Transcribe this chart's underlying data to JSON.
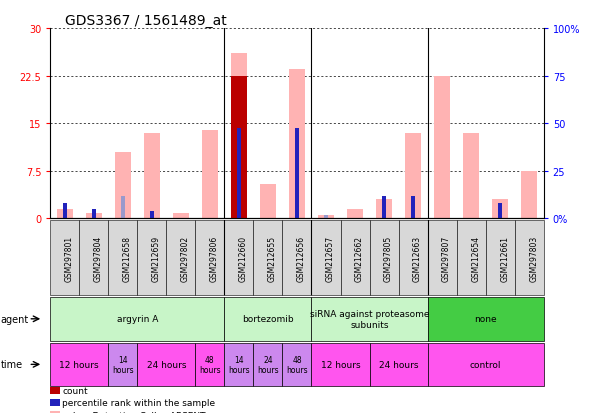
{
  "title": "GDS3367 / 1561489_at",
  "samples": [
    "GSM297801",
    "GSM297804",
    "GSM212658",
    "GSM212659",
    "GSM297802",
    "GSM297806",
    "GSM212660",
    "GSM212655",
    "GSM212656",
    "GSM212657",
    "GSM212662",
    "GSM297805",
    "GSM212663",
    "GSM297807",
    "GSM212654",
    "GSM212661",
    "GSM297803"
  ],
  "pink_bars": [
    1.5,
    0.8,
    10.5,
    13.5,
    0.8,
    14.0,
    26.0,
    5.5,
    23.5,
    0.5,
    1.5,
    3.0,
    13.5,
    22.5,
    13.5,
    3.0,
    7.5
  ],
  "red_bars": [
    0,
    0,
    0,
    0,
    0,
    0,
    22.5,
    0,
    0,
    0,
    0,
    0,
    0,
    0,
    0,
    0,
    0
  ],
  "blue_bars": [
    2.5,
    1.5,
    0,
    1.2,
    0,
    0,
    14.2,
    0,
    14.2,
    0,
    0,
    3.5,
    3.5,
    0,
    0,
    2.5,
    0
  ],
  "lavender_bars": [
    0,
    0,
    3.5,
    0,
    0,
    0,
    0,
    0,
    0,
    0.5,
    0,
    0,
    0,
    0,
    0,
    0,
    0
  ],
  "ylim_left": [
    0,
    30
  ],
  "ylim_right": [
    0,
    100
  ],
  "yticks_left": [
    0,
    7.5,
    15,
    22.5,
    30
  ],
  "yticks_left_labels": [
    "0",
    "7.5",
    "15",
    "22.5",
    "30"
  ],
  "yticks_right": [
    0,
    25,
    50,
    75,
    100
  ],
  "yticks_right_labels": [
    "0%",
    "25",
    "50",
    "75",
    "100%"
  ],
  "agent_groups": [
    {
      "label": "argyrin A",
      "start": 0,
      "end": 6,
      "color": "#c8f5c8"
    },
    {
      "label": "bortezomib",
      "start": 6,
      "end": 9,
      "color": "#c8f5c8"
    },
    {
      "label": "siRNA against proteasome\nsubunits",
      "start": 9,
      "end": 13,
      "color": "#c8f5c8"
    },
    {
      "label": "none",
      "start": 13,
      "end": 17,
      "color": "#44cc44"
    }
  ],
  "time_groups": [
    {
      "label": "12 hours",
      "start": 0,
      "end": 2,
      "color": "#ff44ff",
      "small": false
    },
    {
      "label": "14\nhours",
      "start": 2,
      "end": 3,
      "color": "#dd88ff",
      "small": true
    },
    {
      "label": "24 hours",
      "start": 3,
      "end": 5,
      "color": "#ff44ff",
      "small": false
    },
    {
      "label": "48\nhours",
      "start": 5,
      "end": 6,
      "color": "#ff44ff",
      "small": true
    },
    {
      "label": "14\nhours",
      "start": 6,
      "end": 7,
      "color": "#dd88ff",
      "small": true
    },
    {
      "label": "24\nhours",
      "start": 7,
      "end": 8,
      "color": "#dd88ff",
      "small": true
    },
    {
      "label": "48\nhours",
      "start": 8,
      "end": 9,
      "color": "#dd88ff",
      "small": true
    },
    {
      "label": "12 hours",
      "start": 9,
      "end": 11,
      "color": "#ff44ff",
      "small": false
    },
    {
      "label": "24 hours",
      "start": 11,
      "end": 13,
      "color": "#ff44ff",
      "small": false
    },
    {
      "label": "control",
      "start": 13,
      "end": 17,
      "color": "#ff44ff",
      "small": false
    }
  ],
  "bar_width": 0.55,
  "pink_color": "#ffb3b3",
  "red_color": "#bb0000",
  "blue_color": "#2222bb",
  "lavender_color": "#9999cc",
  "title_fontsize": 10,
  "tick_fontsize": 7,
  "sample_fontsize": 5.5
}
